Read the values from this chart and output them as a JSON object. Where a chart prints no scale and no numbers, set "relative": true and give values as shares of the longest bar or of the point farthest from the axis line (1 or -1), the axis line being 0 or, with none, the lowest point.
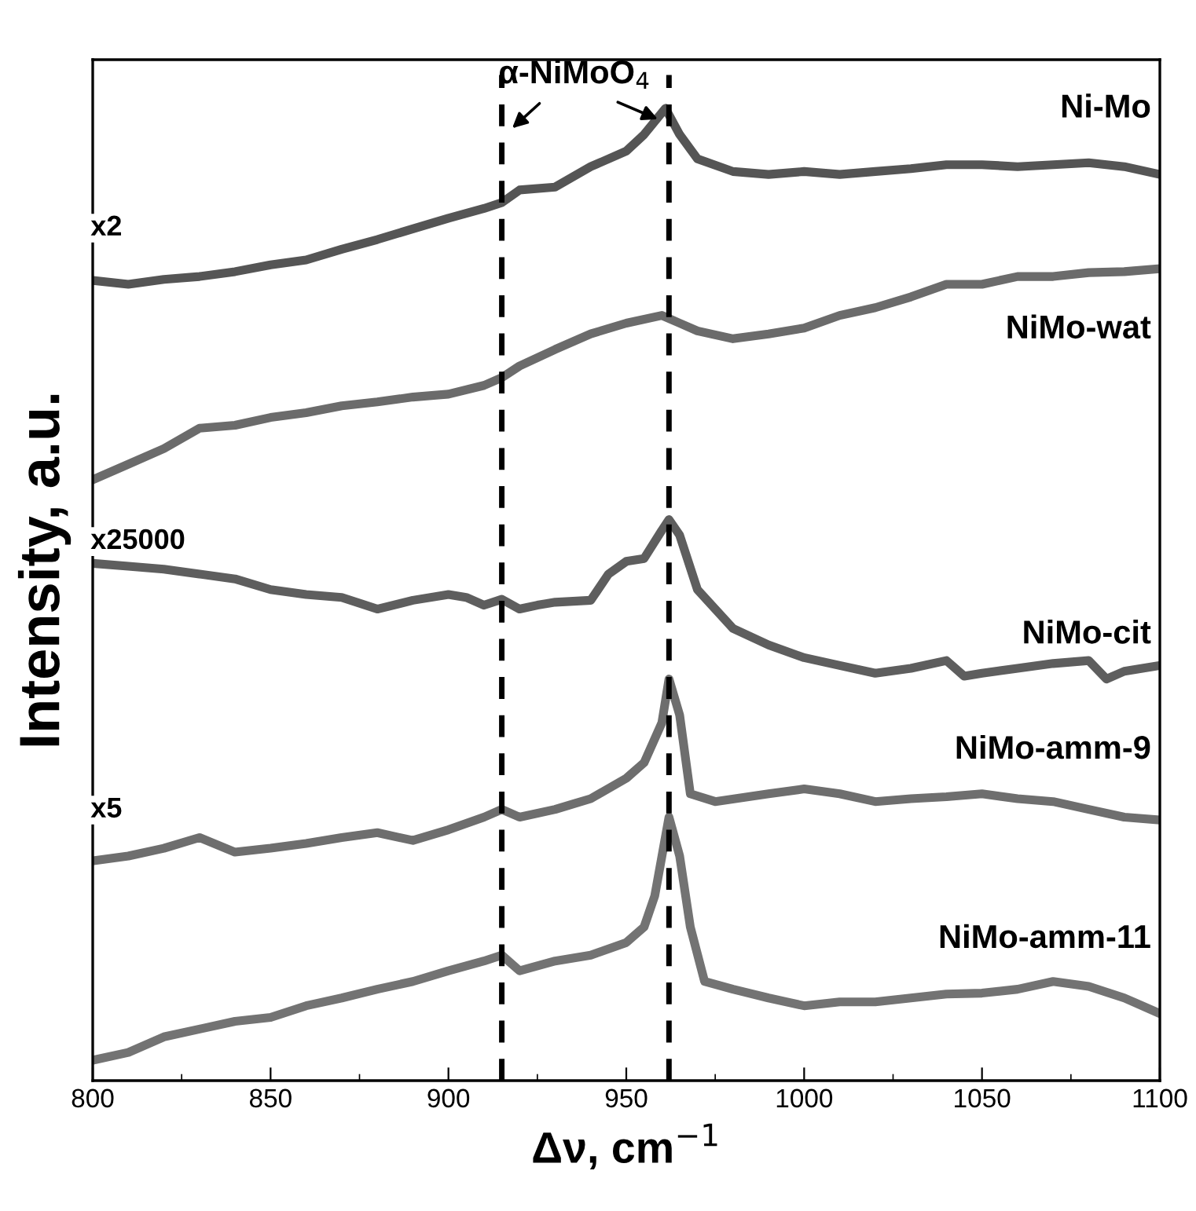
{
  "chart_data": {
    "type": "line",
    "relative": true,
    "xlabel": "Δν, cm$^{−1}$",
    "ylabel": "Intensity, a.u.",
    "xlim": [
      800,
      1100
    ],
    "xticks": [
      800,
      850,
      900,
      950,
      1000,
      1050,
      1100
    ],
    "tick_labels": "x",
    "grid": false,
    "marker": "none",
    "line_style": "solid",
    "ref_lines": [
      {
        "axis": "x",
        "value": 915,
        "color": "#000000",
        "line_style": "dashed"
      },
      {
        "axis": "x",
        "value": 962,
        "color": "#000000",
        "line_style": "dashed"
      }
    ],
    "annotations": [
      "α-NiMoO$_{4}$",
      "x2",
      "x25000",
      "x5"
    ],
    "x": [
      800,
      810,
      820,
      830,
      840,
      850,
      860,
      870,
      880,
      890,
      900,
      910,
      915,
      920,
      930,
      940,
      950,
      955,
      961,
      965,
      970,
      980,
      990,
      1000,
      1010,
      1020,
      1030,
      1040,
      1050,
      1060,
      1070,
      1080,
      1090,
      1100
    ],
    "series": [
      {
        "name": "Ni-Mo",
        "color": "#555555",
        "values": [
          0.823,
          0.819,
          0.824,
          0.827,
          0.832,
          0.839,
          0.844,
          0.855,
          0.865,
          0.876,
          0.887,
          0.897,
          0.903,
          0.916,
          0.919,
          0.94,
          0.956,
          0.973,
          1.0,
          0.973,
          0.948,
          0.935,
          0.932,
          0.935,
          0.932,
          0.935,
          0.938,
          0.942,
          0.942,
          0.94,
          0.942,
          0.944,
          0.94,
          0.932
        ]
      },
      {
        "name": "NiMo-wat",
        "color": "#6b6b6b",
        "x": [
          800,
          810,
          820,
          830,
          840,
          850,
          860,
          870,
          880,
          890,
          900,
          910,
          915,
          920,
          930,
          940,
          950,
          960,
          965,
          970,
          980,
          990,
          1000,
          1010,
          1020,
          1030,
          1040,
          1050,
          1060,
          1070,
          1080,
          1090,
          1100
        ],
        "values": [
          0.618,
          0.634,
          0.65,
          0.671,
          0.674,
          0.682,
          0.687,
          0.694,
          0.698,
          0.703,
          0.706,
          0.715,
          0.723,
          0.735,
          0.752,
          0.768,
          0.779,
          0.787,
          0.779,
          0.771,
          0.763,
          0.768,
          0.774,
          0.787,
          0.795,
          0.806,
          0.819,
          0.819,
          0.827,
          0.827,
          0.831,
          0.832,
          0.835
        ]
      },
      {
        "name": "NiMo-cit",
        "color": "#5e5e5e",
        "x": [
          800,
          810,
          820,
          830,
          840,
          850,
          860,
          870,
          880,
          890,
          900,
          905,
          910,
          915,
          920,
          925,
          930,
          940,
          945,
          950,
          955,
          960,
          962,
          965,
          970,
          980,
          990,
          1000,
          1010,
          1020,
          1030,
          1040,
          1045,
          1050,
          1060,
          1070,
          1080,
          1085,
          1090,
          1100
        ],
        "values": [
          0.532,
          0.529,
          0.526,
          0.521,
          0.516,
          0.505,
          0.5,
          0.497,
          0.485,
          0.494,
          0.5,
          0.497,
          0.489,
          0.495,
          0.485,
          0.489,
          0.492,
          0.494,
          0.521,
          0.534,
          0.537,
          0.566,
          0.577,
          0.561,
          0.505,
          0.465,
          0.448,
          0.435,
          0.427,
          0.419,
          0.424,
          0.432,
          0.416,
          0.419,
          0.424,
          0.429,
          0.432,
          0.413,
          0.421,
          0.427
        ]
      },
      {
        "name": "NiMo-amm-9",
        "color": "#6e6e6e",
        "x": [
          800,
          810,
          820,
          830,
          840,
          850,
          860,
          870,
          880,
          890,
          900,
          910,
          915,
          920,
          930,
          940,
          950,
          955,
          960,
          962,
          965,
          968,
          975,
          990,
          1000,
          1010,
          1020,
          1030,
          1040,
          1050,
          1060,
          1070,
          1080,
          1090,
          1100
        ],
        "values": [
          0.226,
          0.231,
          0.239,
          0.25,
          0.235,
          0.239,
          0.244,
          0.25,
          0.255,
          0.247,
          0.258,
          0.271,
          0.279,
          0.271,
          0.279,
          0.29,
          0.311,
          0.327,
          0.368,
          0.413,
          0.376,
          0.295,
          0.287,
          0.295,
          0.3,
          0.295,
          0.287,
          0.29,
          0.292,
          0.295,
          0.29,
          0.287,
          0.279,
          0.271,
          0.268
        ]
      },
      {
        "name": "NiMo-amm-11",
        "color": "#737373",
        "x": [
          800,
          810,
          820,
          830,
          840,
          850,
          860,
          870,
          880,
          890,
          900,
          910,
          915,
          920,
          930,
          940,
          950,
          955,
          958,
          962,
          965,
          968,
          972,
          980,
          990,
          1000,
          1010,
          1020,
          1030,
          1040,
          1050,
          1060,
          1070,
          1080,
          1090,
          1100
        ],
        "values": [
          0.021,
          0.029,
          0.045,
          0.053,
          0.061,
          0.065,
          0.077,
          0.085,
          0.094,
          0.102,
          0.113,
          0.123,
          0.129,
          0.113,
          0.123,
          0.129,
          0.142,
          0.158,
          0.19,
          0.271,
          0.231,
          0.158,
          0.102,
          0.094,
          0.085,
          0.077,
          0.081,
          0.081,
          0.085,
          0.089,
          0.09,
          0.094,
          0.102,
          0.097,
          0.085,
          0.069
        ]
      }
    ]
  }
}
